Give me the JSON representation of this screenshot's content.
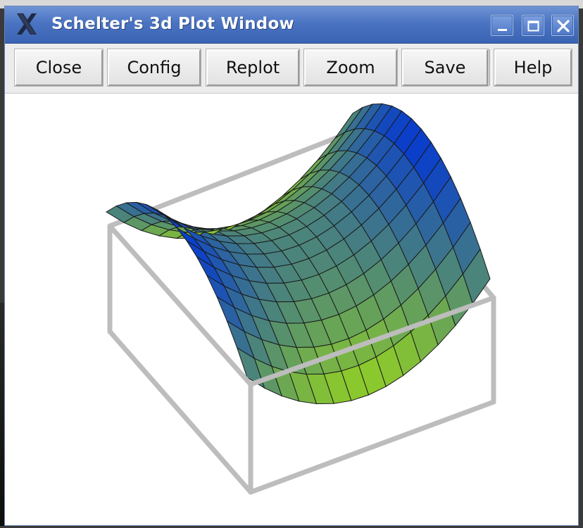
{
  "window": {
    "title": "Schelter's 3d Plot Window",
    "icon": "x-logo-icon",
    "controls": [
      "minimize-icon",
      "maximize-icon",
      "close-icon"
    ]
  },
  "toolbar": {
    "buttons": [
      {
        "label": "Close"
      },
      {
        "label": "Config"
      },
      {
        "label": "Replot"
      },
      {
        "label": "Zoom"
      },
      {
        "label": "Save"
      },
      {
        "label": "Help"
      }
    ]
  },
  "plot": {
    "type": "3d-surface",
    "surface": "saddle",
    "colors": {
      "low": "#b0f000",
      "high": "#0034d6",
      "mesh": "#1a1a1a",
      "box": "#bdbdbd"
    }
  }
}
